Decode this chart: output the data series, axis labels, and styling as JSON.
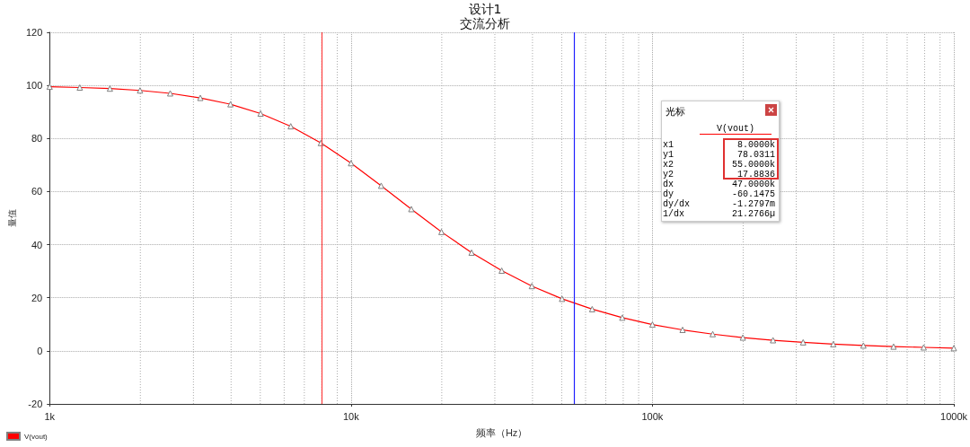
{
  "chart_data": {
    "type": "line",
    "title": "设计1",
    "subtitle": "交流分析",
    "xlabel": "频率（Hz）",
    "ylabel": "量值",
    "x": [
      1000,
      1259,
      1585,
      1995,
      2512,
      3162,
      3981,
      5012,
      6310,
      7943,
      10000,
      12589,
      15849,
      19953,
      25119,
      31623,
      39811,
      50119,
      63096,
      79433,
      100000,
      125893,
      158489,
      199526,
      251189,
      316228,
      398107,
      501187,
      630957,
      794328,
      1000000
    ],
    "series": [
      {
        "name": "V(vout)",
        "color": "#ff0000",
        "values": [
          99.5,
          99.2,
          98.8,
          98.1,
          97.0,
          95.3,
          92.9,
          89.4,
          84.6,
          78.3,
          70.7,
          62.2,
          53.4,
          44.8,
          37.0,
          30.2,
          24.4,
          19.6,
          15.7,
          12.5,
          9.9,
          7.9,
          6.3,
          5.0,
          4.0,
          3.2,
          2.5,
          2.0,
          1.6,
          1.3,
          1.0
        ]
      }
    ],
    "log": "x",
    "xlim": [
      1000,
      1000000
    ],
    "xticks": [
      {
        "value": 1000,
        "label": "1k"
      },
      {
        "value": 2000,
        "label": null
      },
      {
        "value": 3000,
        "label": null
      },
      {
        "value": 4000,
        "label": null
      },
      {
        "value": 5000,
        "label": null
      },
      {
        "value": 6000,
        "label": null
      },
      {
        "value": 7000,
        "label": null
      },
      {
        "value": 8000,
        "label": null
      },
      {
        "value": 9000,
        "label": null
      },
      {
        "value": 10000,
        "label": "10k"
      },
      {
        "value": 20000,
        "label": null
      },
      {
        "value": 30000,
        "label": null
      },
      {
        "value": 40000,
        "label": null
      },
      {
        "value": 50000,
        "label": null
      },
      {
        "value": 60000,
        "label": null
      },
      {
        "value": 70000,
        "label": null
      },
      {
        "value": 80000,
        "label": null
      },
      {
        "value": 90000,
        "label": null
      },
      {
        "value": 100000,
        "label": "100k"
      },
      {
        "value": 200000,
        "label": null
      },
      {
        "value": 300000,
        "label": null
      },
      {
        "value": 400000,
        "label": null
      },
      {
        "value": 500000,
        "label": null
      },
      {
        "value": 600000,
        "label": null
      },
      {
        "value": 700000,
        "label": null
      },
      {
        "value": 800000,
        "label": null
      },
      {
        "value": 900000,
        "label": null
      },
      {
        "value": 1000000,
        "label": "1000k"
      }
    ],
    "ylim": [
      -20,
      120
    ],
    "yticks": [
      -20,
      0,
      20,
      40,
      60,
      80,
      100,
      120
    ],
    "grid": true,
    "legend": "bottom left",
    "marker": "triangle",
    "line_style": "solid",
    "ref_lines": [
      {
        "axis": "x",
        "value": 8000,
        "label": null,
        "color": "#ff4040"
      },
      {
        "axis": "x",
        "value": 55000,
        "label": null,
        "color": "#2020ff"
      }
    ],
    "annotations": [
      "光标",
      "V(vout)",
      "x1",
      "8.0000k",
      "y1",
      "78.0311",
      "x2",
      "55.0000k",
      "y2",
      "17.8836",
      "dx",
      "47.0000k",
      "dy",
      "-60.1475",
      "dy/dx",
      "-1.2797m",
      "1/dx",
      "21.2766µ"
    ]
  }
}
